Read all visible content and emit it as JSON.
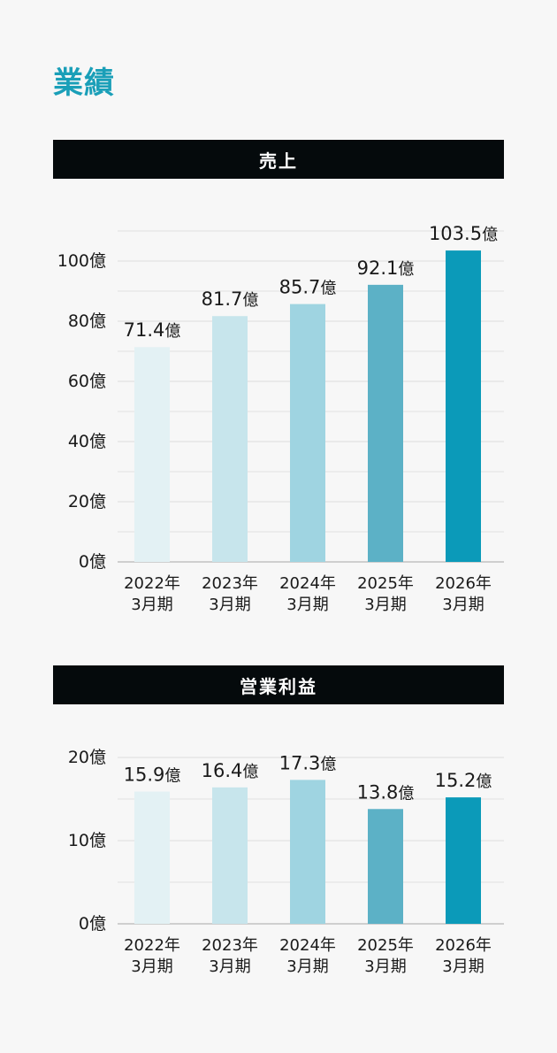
{
  "page": {
    "title": "業績"
  },
  "sections": [
    {
      "title": "売上"
    },
    {
      "title": "営業利益"
    }
  ],
  "bar_colors": [
    "#e3f1f4",
    "#c7e5ec",
    "#9fd4e1",
    "#5cb1c6",
    "#0b9ab9"
  ],
  "chart_data": [
    {
      "type": "bar",
      "title": "売上",
      "categories": [
        "2022年\n3月期",
        "2023年\n3月期",
        "2024年\n3月期",
        "2025年\n3月期",
        "2026年\n3月期"
      ],
      "values": [
        71.4,
        81.7,
        85.7,
        92.1,
        103.5
      ],
      "data_labels": [
        "71.4億",
        "81.7億",
        "85.7億",
        "92.1億",
        "103.5億"
      ],
      "yticks": [
        0,
        20,
        40,
        60,
        80,
        100
      ],
      "ytick_labels": [
        "0億",
        "20億",
        "40億",
        "60億",
        "80億",
        "100億"
      ],
      "ylim": [
        0,
        100
      ],
      "grid": true
    },
    {
      "type": "bar",
      "title": "営業利益",
      "categories": [
        "2022年\n3月期",
        "2023年\n3月期",
        "2024年\n3月期",
        "2025年\n3月期",
        "2026年\n3月期"
      ],
      "values": [
        15.9,
        16.4,
        17.3,
        13.8,
        15.2
      ],
      "data_labels": [
        "15.9億",
        "16.4億",
        "17.3億",
        "13.8億",
        "15.2億"
      ],
      "yticks": [
        0,
        10,
        20
      ],
      "ytick_labels": [
        "0億",
        "10億",
        "20億"
      ],
      "ylim": [
        0,
        20
      ],
      "grid": true
    }
  ]
}
